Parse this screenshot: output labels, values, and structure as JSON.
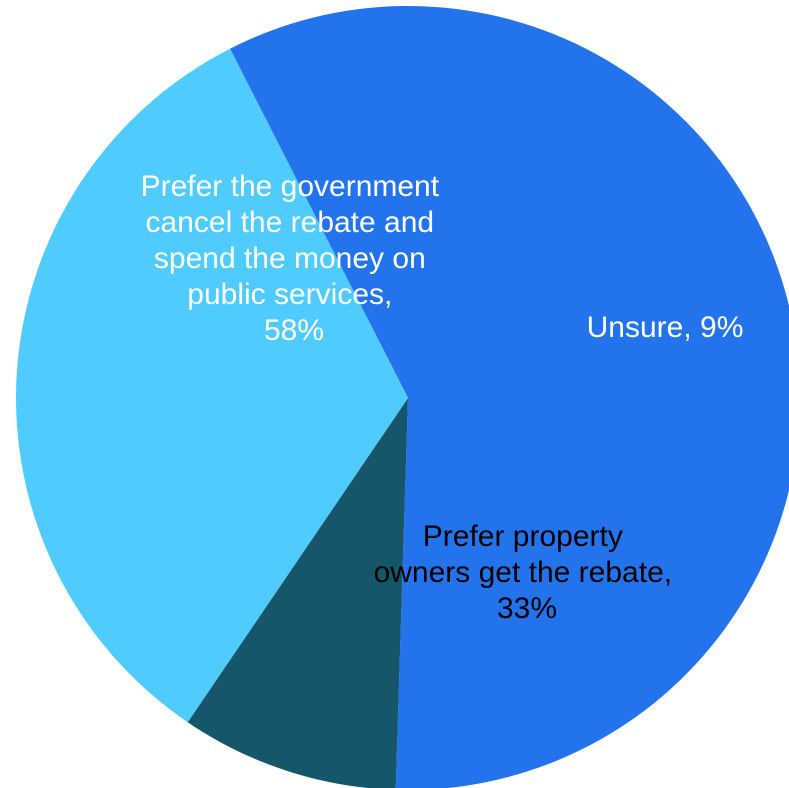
{
  "chart_data": {
    "type": "pie",
    "title": "",
    "slices": [
      {
        "name": "Prefer the government cancel the rebate and spend the money on public services",
        "value": 58,
        "color": "#2373EC",
        "text_color": "#FFFFFF",
        "label_lines": [
          "Prefer the government",
          "cancel the rebate and",
          "spend the money on",
          "public services,",
          "58%"
        ]
      },
      {
        "name": "Unsure",
        "value": 9,
        "color": "#15566B",
        "text_color": "#FFFFFF",
        "label_lines": [
          "Unsure, 9%"
        ]
      },
      {
        "name": "Prefer property owners get the rebate",
        "value": 33,
        "color": "#4FCCFD",
        "text_color": "#000000",
        "label_lines": [
          "Prefer property",
          "owners get the rebate,",
          "33%"
        ]
      }
    ]
  }
}
